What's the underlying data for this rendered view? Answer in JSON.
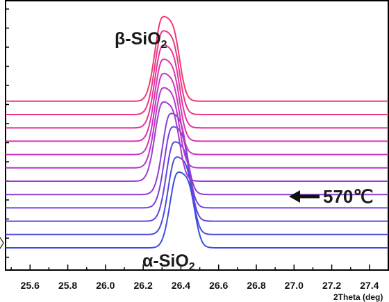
{
  "chart_data": {
    "type": "line",
    "title": "",
    "xlabel": "2Theta (deg)",
    "ylabel": "",
    "xlim": [
      25.47,
      27.5
    ],
    "x_ticks": [
      "25.6",
      "25.8",
      "26.0",
      "26.2",
      "26.4",
      "26.6",
      "26.8",
      "27.0",
      "27.2",
      "27.4"
    ],
    "legend": null,
    "annotations": {
      "beta_main": "β-SiO",
      "beta_sub": "2",
      "alpha_main": "α-SiO",
      "alpha_sub": "2",
      "temperature": "570℃"
    },
    "series": [
      {
        "peak": 26.38,
        "shoulder": 26.45,
        "amplitude": 0.84,
        "color": "#3a4fe0"
      },
      {
        "peak": 26.37,
        "shoulder": 26.44,
        "amplitude": 0.86,
        "color": "#4b4ade"
      },
      {
        "peak": 26.36,
        "shoulder": 26.43,
        "amplitude": 0.88,
        "color": "#5f46dc"
      },
      {
        "peak": 26.35,
        "shoulder": 26.42,
        "amplitude": 0.9,
        "color": "#7642da"
      },
      {
        "peak": 26.34,
        "shoulder": 26.41,
        "amplitude": 0.9,
        "color": "#8c3ed6"
      },
      {
        "peak": 26.3,
        "shoulder": 26.37,
        "amplitude": 0.88,
        "color": "#a13bd0"
      },
      {
        "peak": 26.3,
        "shoulder": 26.37,
        "amplitude": 0.89,
        "color": "#b638c8"
      },
      {
        "peak": 26.3,
        "shoulder": 26.37,
        "amplitude": 0.9,
        "color": "#c936bd"
      },
      {
        "peak": 26.3,
        "shoulder": 26.37,
        "amplitude": 0.91,
        "color": "#d935ae"
      },
      {
        "peak": 26.3,
        "shoulder": 26.37,
        "amplitude": 0.92,
        "color": "#e4359c"
      },
      {
        "peak": 26.3,
        "shoulder": 26.37,
        "amplitude": 0.93,
        "color": "#ec3786"
      },
      {
        "peak": 26.3,
        "shoulder": 26.37,
        "amplitude": 0.94,
        "color": "#f03b6e"
      }
    ]
  }
}
